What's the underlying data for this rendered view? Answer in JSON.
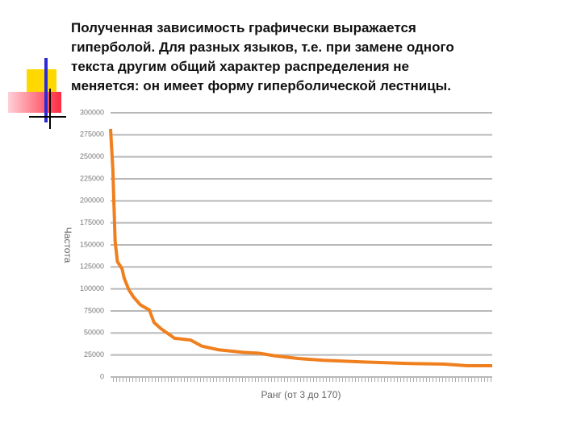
{
  "slide": {
    "lines": [
      "Полученная зависимость графически выражается",
      "гиперболой. Для разных языков, т.е. при замене одного",
      "текста другим общий характер распределения не",
      "меняется: он имеет форму гиперболической лестницы."
    ]
  },
  "chart_data": {
    "type": "line",
    "x_label": "Ранг (от 3 до 170)",
    "y_label": "Частота",
    "x": [
      3,
      4,
      5,
      6,
      8,
      9,
      11,
      13,
      16,
      20,
      22,
      25,
      31,
      38,
      43,
      50,
      61,
      68,
      75,
      85,
      96,
      114,
      131,
      149,
      159,
      170
    ],
    "series": [
      {
        "name": "Частота",
        "color": "#f07f1e",
        "values": [
          281700,
          236000,
          154000,
          131000,
          123000,
          112000,
          99000,
          91000,
          82000,
          76000,
          62000,
          55000,
          44000,
          42000,
          35000,
          31000,
          28000,
          27000,
          24000,
          21000,
          19000,
          17000,
          15500,
          14600,
          12800,
          12800
        ]
      }
    ],
    "xlim": [
      3,
      170
    ],
    "ylim": [
      0,
      300000
    ],
    "yticks": [
      0,
      25000,
      50000,
      75000,
      100000,
      125000,
      150000,
      175000,
      200000,
      225000,
      250000,
      275000,
      300000
    ],
    "grid": true
  }
}
